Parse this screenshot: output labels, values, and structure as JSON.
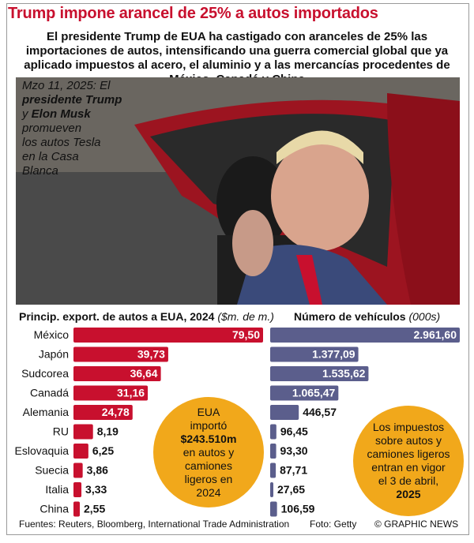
{
  "title": "Trump impone arancel de 25% a autos importados",
  "subtitle": "El presidente Trump de EUA ha castigado con aranceles de 25% las importaciones de autos, intensificando una guerra comercial global que ya aplicado impuestos al acero, el aluminio y a las mercancías procedentes de México, Canadá y China",
  "photo": {
    "caption_date": "Mzo 11, 2025: El",
    "caption_name1": "presidente Trump",
    "caption_and": "y",
    "caption_name2": "Elon Musk",
    "caption_rest1": "promueven",
    "caption_rest2": "los autos Tesla",
    "caption_rest3": "en la Casa",
    "caption_rest4": "Blanca"
  },
  "chart_data": [
    {
      "type": "bar",
      "orientation": "horizontal",
      "title": "Princip. export. de autos a EUA, 2024",
      "unit": "($m. de m.)",
      "categories": [
        "México",
        "Japón",
        "Sudcorea",
        "Canadá",
        "Alemania",
        "RU",
        "Eslovaquia",
        "Suecia",
        "Italia",
        "China"
      ],
      "values": [
        79.5,
        39.73,
        36.64,
        31.16,
        24.78,
        8.19,
        6.25,
        3.86,
        3.33,
        2.55
      ],
      "labels": [
        "79,50",
        "39,73",
        "36,64",
        "31,16",
        "24,78",
        "8,19",
        "6,25",
        "3,86",
        "3,33",
        "2,55"
      ],
      "color": "#c8102e"
    },
    {
      "type": "bar",
      "orientation": "horizontal",
      "title": "Número de vehículos",
      "unit": "(000s)",
      "categories": [
        "México",
        "Japón",
        "Sudcorea",
        "Canadá",
        "Alemania",
        "RU",
        "Eslovaquia",
        "Suecia",
        "Italia",
        "China"
      ],
      "values": [
        2961.6,
        1377.09,
        1535.62,
        1065.47,
        446.57,
        96.45,
        93.3,
        87.71,
        27.65,
        106.59
      ],
      "labels": [
        "2.961,60",
        "1.377,09",
        "1.535,62",
        "1.065,47",
        "446,57",
        "96,45",
        "93,30",
        "87,71",
        "27,65",
        "106,59"
      ],
      "color": "#5b5e8c"
    }
  ],
  "bubble_left": {
    "line1": "EUA",
    "line2": "importó",
    "line3": "$243.510m",
    "line4": "en autos y",
    "line5": "camiones",
    "line6": "ligeros en",
    "line7": "2024"
  },
  "bubble_right": {
    "line1": "Los impuestos",
    "line2": "sobre autos y",
    "line3": "camiones ligeros",
    "line4": "entran en vigor",
    "line5": "el 3 de abril,",
    "line6": "2025"
  },
  "footer": {
    "sources": "Fuentes: Reuters, Bloomberg, International Trade Administration",
    "photo": "Foto: Getty",
    "brand": "© GRAPHIC NEWS"
  },
  "colors": {
    "accent": "#c8102e",
    "bar_right": "#5b5e8c",
    "bubble": "#f1a81b"
  }
}
